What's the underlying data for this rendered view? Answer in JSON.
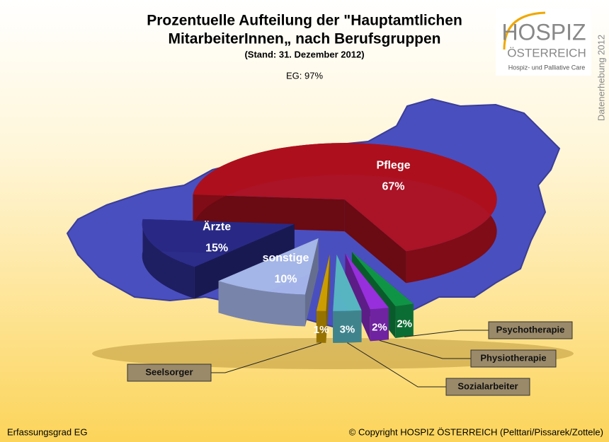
{
  "chart_data": {
    "type": "pie",
    "title": [
      "Prozentuelle Aufteilung der \"Hauptamtlichen",
      "MitarbeiterInnen„ nach Berufsgruppen"
    ],
    "subtitle": "(Stand: 31. Dezember 2012)",
    "annotation": "EG: 97%",
    "categories": [
      "Pflege",
      "Psychotherapie",
      "Physiotherapie",
      "Sozialarbeiter",
      "Seelsorger",
      "sonstige",
      "Ärzte"
    ],
    "values": [
      67,
      2,
      2,
      3,
      1,
      10,
      15
    ],
    "value_labels": [
      "67%",
      "2%",
      "2%",
      "3%",
      "1%",
      "10%",
      "15%"
    ],
    "colors": [
      "#b0101e",
      "#109848",
      "#9a30e0",
      "#58b8c4",
      "#d0a000",
      "#a8b8ec",
      "#2a2a88"
    ]
  },
  "logo": {
    "name": "HOSPIZ",
    "country": "ÖSTERREICH",
    "tagline": "Hospiz- und Palliative Care",
    "side": "Datenerhebung 2012"
  },
  "footer": {
    "left": "Erfassungsgrad EG",
    "right": "© Copyright HOSPIZ ÖSTERREICH (Pelttari/Pissarek/Zottele)"
  }
}
